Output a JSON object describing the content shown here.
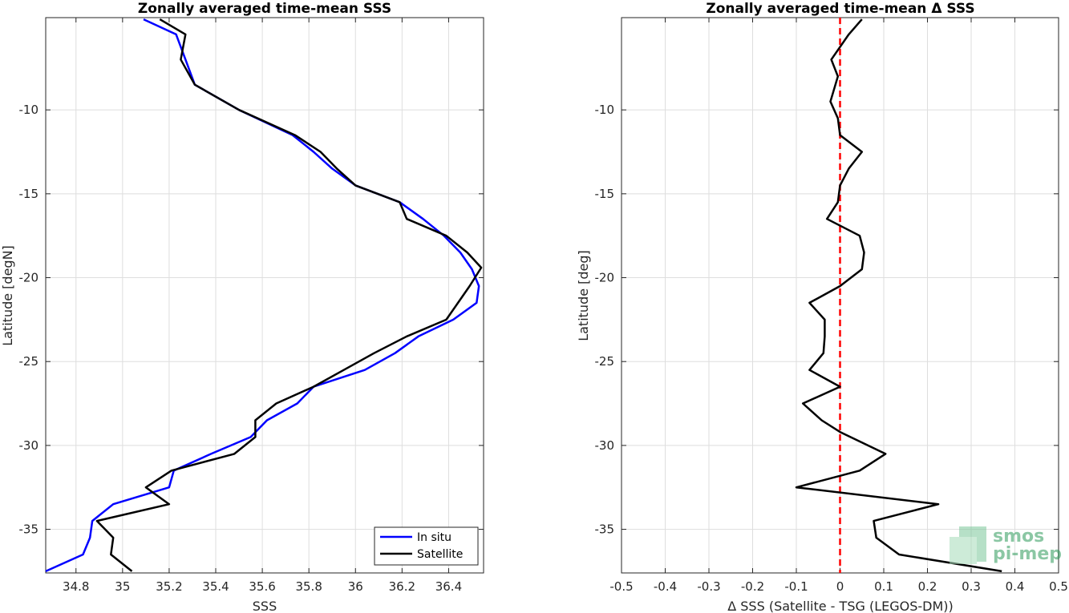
{
  "chart_data": [
    {
      "type": "line",
      "title": "Zonally averaged time-mean SSS",
      "xlabel": "SSS",
      "ylabel": "Latitude [degN]",
      "xlim": [
        34.67,
        36.55
      ],
      "ylim": [
        -37.6,
        -4.5
      ],
      "xticks": [
        34.8,
        35,
        35.2,
        35.4,
        35.6,
        35.8,
        36,
        36.2,
        36.4
      ],
      "xtick_labels": [
        "34.8",
        "35",
        "35.2",
        "35.4",
        "35.6",
        "35.8",
        "36",
        "36.2",
        "36.4"
      ],
      "yticks": [
        -10,
        -15,
        -20,
        -25,
        -30,
        -35
      ],
      "ytick_labels": [
        "-10",
        "-15",
        "-20",
        "-25",
        "-30",
        "-35"
      ],
      "grid": true,
      "legend_position": "bottom-right",
      "series": [
        {
          "name": "In situ",
          "color": "#0000ff",
          "points": [
            [
              35.09,
              -4.6
            ],
            [
              35.23,
              -5.5
            ],
            [
              35.27,
              -7.0
            ],
            [
              35.31,
              -8.5
            ],
            [
              35.5,
              -10.0
            ],
            [
              35.73,
              -11.5
            ],
            [
              35.82,
              -12.5
            ],
            [
              35.9,
              -13.5
            ],
            [
              36.0,
              -14.5
            ],
            [
              36.19,
              -15.5
            ],
            [
              36.29,
              -16.5
            ],
            [
              36.38,
              -17.5
            ],
            [
              36.45,
              -18.5
            ],
            [
              36.5,
              -19.5
            ],
            [
              36.53,
              -20.5
            ],
            [
              36.52,
              -21.5
            ],
            [
              36.42,
              -22.5
            ],
            [
              36.27,
              -23.5
            ],
            [
              36.17,
              -24.5
            ],
            [
              36.04,
              -25.5
            ],
            [
              35.82,
              -26.5
            ],
            [
              35.75,
              -27.5
            ],
            [
              35.62,
              -28.5
            ],
            [
              35.55,
              -29.5
            ],
            [
              35.38,
              -30.5
            ],
            [
              35.22,
              -31.5
            ],
            [
              35.2,
              -32.5
            ],
            [
              34.96,
              -33.5
            ],
            [
              34.87,
              -34.5
            ],
            [
              34.86,
              -35.5
            ],
            [
              34.83,
              -36.5
            ],
            [
              34.67,
              -37.5
            ]
          ]
        },
        {
          "name": "Satellite",
          "color": "#000000",
          "points": [
            [
              35.16,
              -4.6
            ],
            [
              35.27,
              -5.5
            ],
            [
              35.25,
              -7.0
            ],
            [
              35.31,
              -8.5
            ],
            [
              35.5,
              -10.0
            ],
            [
              35.74,
              -11.5
            ],
            [
              35.85,
              -12.5
            ],
            [
              35.92,
              -13.5
            ],
            [
              36.0,
              -14.5
            ],
            [
              36.19,
              -15.5
            ],
            [
              36.22,
              -16.5
            ],
            [
              36.39,
              -17.5
            ],
            [
              36.48,
              -18.5
            ],
            [
              36.54,
              -19.4
            ],
            [
              36.49,
              -20.5
            ],
            [
              36.44,
              -21.5
            ],
            [
              36.39,
              -22.5
            ],
            [
              36.22,
              -23.5
            ],
            [
              36.08,
              -24.5
            ],
            [
              35.95,
              -25.5
            ],
            [
              35.82,
              -26.5
            ],
            [
              35.66,
              -27.5
            ],
            [
              35.57,
              -28.5
            ],
            [
              35.57,
              -29.5
            ],
            [
              35.48,
              -30.5
            ],
            [
              35.21,
              -31.5
            ],
            [
              35.1,
              -32.5
            ],
            [
              35.2,
              -33.5
            ],
            [
              34.89,
              -34.5
            ],
            [
              34.96,
              -35.5
            ],
            [
              34.95,
              -36.5
            ],
            [
              35.04,
              -37.5
            ]
          ]
        }
      ]
    },
    {
      "type": "line",
      "title": "Zonally averaged time-mean Δ SSS",
      "xlabel": "Δ SSS (Satellite - TSG (LEGOS-DM))",
      "ylabel": "Latitude [deg]",
      "xlim": [
        -0.5,
        0.5
      ],
      "ylim": [
        -37.6,
        -4.5
      ],
      "xticks": [
        -0.5,
        -0.4,
        -0.3,
        -0.2,
        -0.1,
        0,
        0.1,
        0.2,
        0.3,
        0.4,
        0.5
      ],
      "xtick_labels": [
        "-0.5",
        "-0.4",
        "-0.3",
        "-0.2",
        "-0.1",
        "0",
        "0.1",
        "0.2",
        "0.3",
        "0.4",
        "0.5"
      ],
      "yticks": [
        -10,
        -15,
        -20,
        -25,
        -30,
        -35
      ],
      "ytick_labels": [
        "-10",
        "-15",
        "-20",
        "-25",
        "-30",
        "-35"
      ],
      "grid": true,
      "reference_line": {
        "x": 0,
        "color": "#ff0000",
        "style": "dashed"
      },
      "series": [
        {
          "color": "#000000",
          "points": [
            [
              0.05,
              -4.6
            ],
            [
              0.02,
              -5.5
            ],
            [
              -0.02,
              -7.0
            ],
            [
              -0.005,
              -8.0
            ],
            [
              -0.022,
              -9.5
            ],
            [
              -0.005,
              -10.5
            ],
            [
              0.0,
              -11.5
            ],
            [
              0.05,
              -12.5
            ],
            [
              0.02,
              -13.5
            ],
            [
              0.0,
              -14.5
            ],
            [
              -0.005,
              -15.5
            ],
            [
              -0.03,
              -16.5
            ],
            [
              0.045,
              -17.5
            ],
            [
              0.055,
              -18.5
            ],
            [
              0.05,
              -19.5
            ],
            [
              0.0,
              -20.5
            ],
            [
              -0.07,
              -21.5
            ],
            [
              -0.035,
              -22.5
            ],
            [
              -0.035,
              -23.5
            ],
            [
              -0.038,
              -24.5
            ],
            [
              -0.07,
              -25.5
            ],
            [
              0.0,
              -26.5
            ],
            [
              -0.085,
              -27.5
            ],
            [
              -0.042,
              -28.5
            ],
            [
              0.0,
              -29.2
            ],
            [
              0.104,
              -30.5
            ],
            [
              0.045,
              -31.5
            ],
            [
              -0.1,
              -32.5
            ],
            [
              0.225,
              -33.5
            ],
            [
              0.077,
              -34.5
            ],
            [
              0.083,
              -35.5
            ],
            [
              0.135,
              -36.5
            ],
            [
              0.37,
              -37.5
            ]
          ]
        }
      ]
    }
  ],
  "logo": {
    "line1": "smos",
    "line2": "pi-mep",
    "color": "#2e9a5a"
  }
}
